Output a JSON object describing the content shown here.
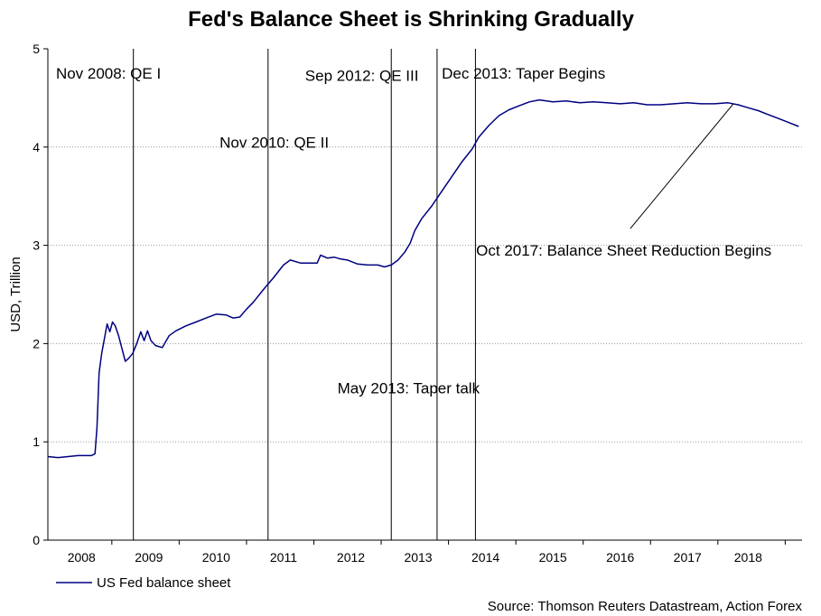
{
  "chart_data": {
    "type": "line",
    "title": "Fed's Balance Sheet is Shrinking Gradually",
    "ylabel": "USD, Trillion",
    "xlabel": "",
    "ylim": [
      0,
      5
    ],
    "xlim": [
      2007.6,
      2018.8
    ],
    "yticks": [
      "0",
      "1",
      "2",
      "3",
      "4",
      "5"
    ],
    "xticks": [
      {
        "label": "2008",
        "x": 2008.1
      },
      {
        "label": "2009",
        "x": 2009.1
      },
      {
        "label": "2010",
        "x": 2010.1
      },
      {
        "label": "2011",
        "x": 2011.1
      },
      {
        "label": "2012",
        "x": 2012.1
      },
      {
        "label": "2013",
        "x": 2013.1
      },
      {
        "label": "2014",
        "x": 2014.1
      },
      {
        "label": "2015",
        "x": 2015.1
      },
      {
        "label": "2016",
        "x": 2016.1
      },
      {
        "label": "2017",
        "x": 2017.1
      },
      {
        "label": "2018",
        "x": 2018.0
      }
    ],
    "grid": "horizontal-dotted",
    "legend_position": "bottom-left",
    "series": [
      {
        "name": "US Fed balance sheet",
        "color": "#000080",
        "points": [
          [
            2007.6,
            0.85
          ],
          [
            2007.75,
            0.84
          ],
          [
            2007.9,
            0.85
          ],
          [
            2008.05,
            0.86
          ],
          [
            2008.25,
            0.86
          ],
          [
            2008.3,
            0.88
          ],
          [
            2008.33,
            1.15
          ],
          [
            2008.36,
            1.7
          ],
          [
            2008.4,
            1.9
          ],
          [
            2008.44,
            2.05
          ],
          [
            2008.48,
            2.2
          ],
          [
            2008.52,
            2.12
          ],
          [
            2008.56,
            2.22
          ],
          [
            2008.6,
            2.18
          ],
          [
            2008.65,
            2.08
          ],
          [
            2008.7,
            1.95
          ],
          [
            2008.75,
            1.82
          ],
          [
            2008.8,
            1.85
          ],
          [
            2008.86,
            1.9
          ],
          [
            2008.92,
            2.0
          ],
          [
            2008.98,
            2.12
          ],
          [
            2009.03,
            2.03
          ],
          [
            2009.08,
            2.13
          ],
          [
            2009.13,
            2.03
          ],
          [
            2009.2,
            1.98
          ],
          [
            2009.3,
            1.96
          ],
          [
            2009.4,
            2.08
          ],
          [
            2009.5,
            2.13
          ],
          [
            2009.65,
            2.18
          ],
          [
            2009.8,
            2.22
          ],
          [
            2009.95,
            2.26
          ],
          [
            2010.1,
            2.3
          ],
          [
            2010.25,
            2.29
          ],
          [
            2010.35,
            2.26
          ],
          [
            2010.45,
            2.27
          ],
          [
            2010.55,
            2.35
          ],
          [
            2010.65,
            2.42
          ],
          [
            2010.8,
            2.55
          ],
          [
            2010.95,
            2.67
          ],
          [
            2011.1,
            2.8
          ],
          [
            2011.2,
            2.85
          ],
          [
            2011.35,
            2.82
          ],
          [
            2011.5,
            2.82
          ],
          [
            2011.6,
            2.82
          ],
          [
            2011.65,
            2.9
          ],
          [
            2011.75,
            2.87
          ],
          [
            2011.85,
            2.88
          ],
          [
            2011.95,
            2.86
          ],
          [
            2012.05,
            2.85
          ],
          [
            2012.2,
            2.81
          ],
          [
            2012.35,
            2.8
          ],
          [
            2012.5,
            2.8
          ],
          [
            2012.6,
            2.78
          ],
          [
            2012.7,
            2.8
          ],
          [
            2012.8,
            2.85
          ],
          [
            2012.9,
            2.93
          ],
          [
            2012.98,
            3.02
          ],
          [
            2013.05,
            3.15
          ],
          [
            2013.15,
            3.27
          ],
          [
            2013.3,
            3.4
          ],
          [
            2013.45,
            3.55
          ],
          [
            2013.6,
            3.7
          ],
          [
            2013.75,
            3.85
          ],
          [
            2013.9,
            3.98
          ],
          [
            2014.0,
            4.1
          ],
          [
            2014.15,
            4.22
          ],
          [
            2014.3,
            4.32
          ],
          [
            2014.45,
            4.38
          ],
          [
            2014.6,
            4.42
          ],
          [
            2014.75,
            4.46
          ],
          [
            2014.9,
            4.48
          ],
          [
            2015.1,
            4.46
          ],
          [
            2015.3,
            4.47
          ],
          [
            2015.5,
            4.45
          ],
          [
            2015.7,
            4.46
          ],
          [
            2015.9,
            4.45
          ],
          [
            2016.1,
            4.44
          ],
          [
            2016.3,
            4.45
          ],
          [
            2016.5,
            4.43
          ],
          [
            2016.7,
            4.43
          ],
          [
            2016.9,
            4.44
          ],
          [
            2017.1,
            4.45
          ],
          [
            2017.3,
            4.44
          ],
          [
            2017.5,
            4.44
          ],
          [
            2017.7,
            4.45
          ],
          [
            2017.85,
            4.43
          ],
          [
            2018.0,
            4.4
          ],
          [
            2018.15,
            4.37
          ],
          [
            2018.3,
            4.33
          ],
          [
            2018.45,
            4.29
          ],
          [
            2018.6,
            4.25
          ],
          [
            2018.75,
            4.21
          ]
        ]
      }
    ],
    "event_lines": [
      {
        "x": 2008.87,
        "label": "Nov 2008: QE I",
        "label_x": 2007.72,
        "label_y": 4.75,
        "anchor": "start"
      },
      {
        "x": 2010.87,
        "label": "Nov 2010: QE II",
        "label_x": 2010.15,
        "label_y": 4.05,
        "anchor": "start"
      },
      {
        "x": 2012.7,
        "label": "Sep 2012: QE III",
        "label_x": 2011.42,
        "label_y": 4.73,
        "anchor": "start"
      },
      {
        "x": 2013.38,
        "label": "May 2013: Taper talk",
        "label_x": 2011.9,
        "label_y": 1.55,
        "anchor": "start"
      },
      {
        "x": 2013.95,
        "label": "Dec 2013: Taper Begins",
        "label_x": 2013.45,
        "label_y": 4.75,
        "anchor": "start"
      }
    ],
    "callout": {
      "label": "Oct 2017: Balance Sheet Reduction Begins",
      "label_x": 2013.96,
      "label_y": 2.95,
      "from_x": 2016.25,
      "from_y": 3.17,
      "to_x": 2017.78,
      "to_y": 4.44
    },
    "source": "Source: Thomson Reuters Datastream, Action Forex"
  }
}
